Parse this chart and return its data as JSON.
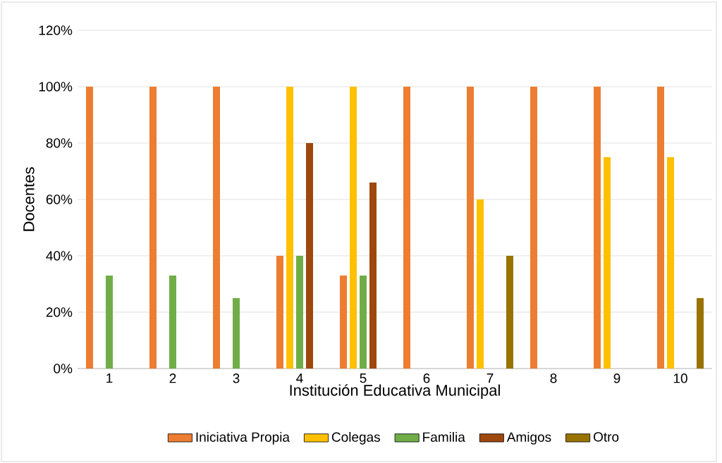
{
  "chart_data": {
    "type": "bar",
    "xlabel": "Institución Educativa Municipal",
    "ylabel": "Docentes",
    "categories": [
      "1",
      "2",
      "3",
      "4",
      "5",
      "6",
      "7",
      "8",
      "9",
      "10"
    ],
    "series": [
      {
        "name": "Iniciativa Propia",
        "color": "#ed7d31",
        "values": [
          100,
          100,
          100,
          40,
          33,
          100,
          100,
          100,
          100,
          100
        ]
      },
      {
        "name": "Colegas",
        "color": "#ffc000",
        "values": [
          0,
          0,
          0,
          100,
          100,
          0,
          60,
          0,
          75,
          75
        ]
      },
      {
        "name": "Familia",
        "color": "#70ad47",
        "values": [
          33,
          33,
          25,
          40,
          33,
          0,
          0,
          0,
          0,
          0
        ]
      },
      {
        "name": "Amigos",
        "color": "#9e480e",
        "values": [
          0,
          0,
          0,
          80,
          66,
          0,
          0,
          0,
          0,
          0
        ]
      },
      {
        "name": "Otro",
        "color": "#997300",
        "values": [
          0,
          0,
          0,
          0,
          0,
          0,
          40,
          0,
          0,
          25
        ]
      }
    ],
    "ylim": [
      0,
      120
    ],
    "yticks": [
      {
        "value": 0,
        "label": "0%"
      },
      {
        "value": 20,
        "label": "20%"
      },
      {
        "value": 40,
        "label": "40%"
      },
      {
        "value": 60,
        "label": "60%"
      },
      {
        "value": 80,
        "label": "80%"
      },
      {
        "value": 100,
        "label": "100%"
      },
      {
        "value": 120,
        "label": "120%"
      }
    ],
    "grid": "y",
    "legend": "bottom"
  }
}
